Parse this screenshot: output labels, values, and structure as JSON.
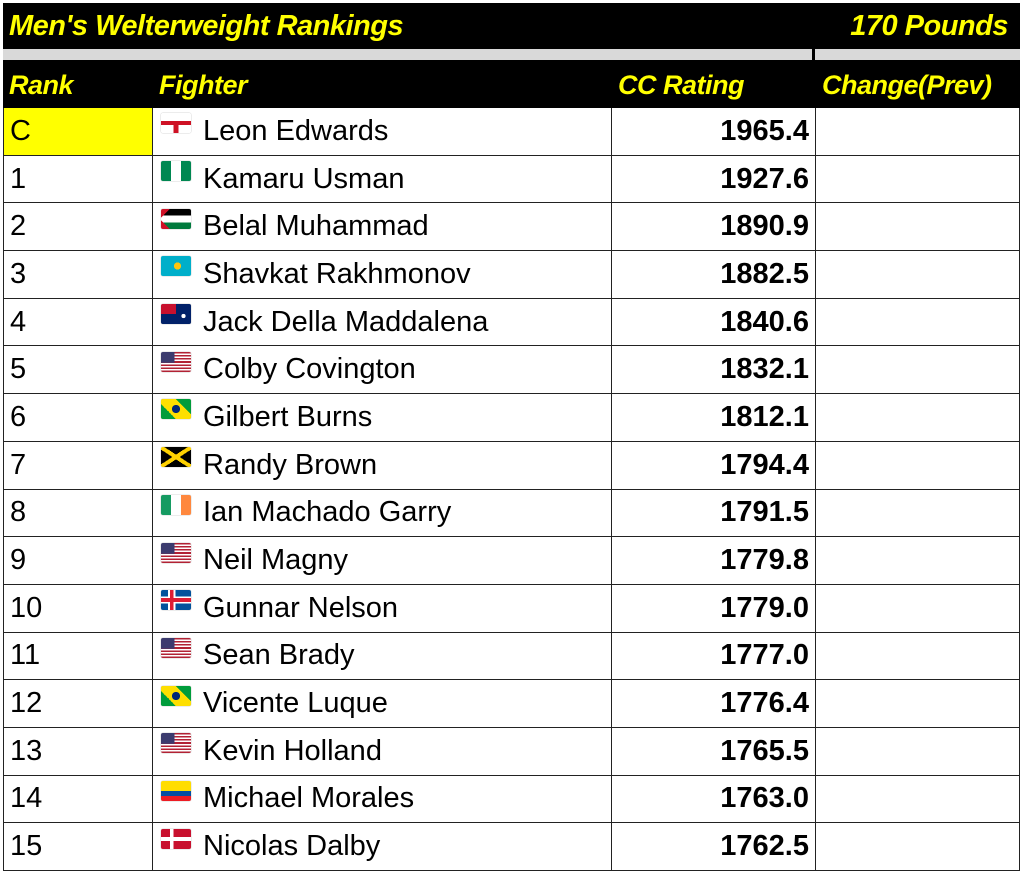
{
  "title": "Men's Welterweight Rankings",
  "weight": "170 Pounds",
  "headers": {
    "rank": "Rank",
    "fighter": "Fighter",
    "rating": "CC Rating",
    "change": "Change(Prev)"
  },
  "colors": {
    "header_bg": "#000000",
    "header_text": "#ffff00",
    "champion_bg": "#ffff00",
    "divider": "#d9d9d9"
  },
  "rows": [
    {
      "rank": "C",
      "flag": "england",
      "name": "Leon Edwards",
      "rating": "1965.4",
      "change": ""
    },
    {
      "rank": "1",
      "flag": "nigeria",
      "name": "Kamaru Usman",
      "rating": "1927.6",
      "change": ""
    },
    {
      "rank": "2",
      "flag": "palestine",
      "name": "Belal Muhammad",
      "rating": "1890.9",
      "change": ""
    },
    {
      "rank": "3",
      "flag": "kazakhstan",
      "name": "Shavkat Rakhmonov",
      "rating": "1882.5",
      "change": ""
    },
    {
      "rank": "4",
      "flag": "australia",
      "name": "Jack Della Maddalena",
      "rating": "1840.6",
      "change": ""
    },
    {
      "rank": "5",
      "flag": "usa",
      "name": "Colby Covington",
      "rating": "1832.1",
      "change": ""
    },
    {
      "rank": "6",
      "flag": "brazil",
      "name": "Gilbert Burns",
      "rating": "1812.1",
      "change": ""
    },
    {
      "rank": "7",
      "flag": "jamaica",
      "name": "Randy Brown",
      "rating": "1794.4",
      "change": ""
    },
    {
      "rank": "8",
      "flag": "ireland",
      "name": "Ian Machado Garry",
      "rating": "1791.5",
      "change": ""
    },
    {
      "rank": "9",
      "flag": "usa",
      "name": "Neil Magny",
      "rating": "1779.8",
      "change": ""
    },
    {
      "rank": "10",
      "flag": "iceland",
      "name": "Gunnar Nelson",
      "rating": "1779.0",
      "change": ""
    },
    {
      "rank": "11",
      "flag": "usa",
      "name": "Sean Brady",
      "rating": "1777.0",
      "change": ""
    },
    {
      "rank": "12",
      "flag": "brazil",
      "name": "Vicente Luque",
      "rating": "1776.4",
      "change": ""
    },
    {
      "rank": "13",
      "flag": "usa",
      "name": "Kevin Holland",
      "rating": "1765.5",
      "change": ""
    },
    {
      "rank": "14",
      "flag": "ecuador",
      "name": "Michael Morales",
      "rating": "1763.0",
      "change": ""
    },
    {
      "rank": "15",
      "flag": "denmark",
      "name": "Nicolas Dalby",
      "rating": "1762.5",
      "change": ""
    }
  ]
}
